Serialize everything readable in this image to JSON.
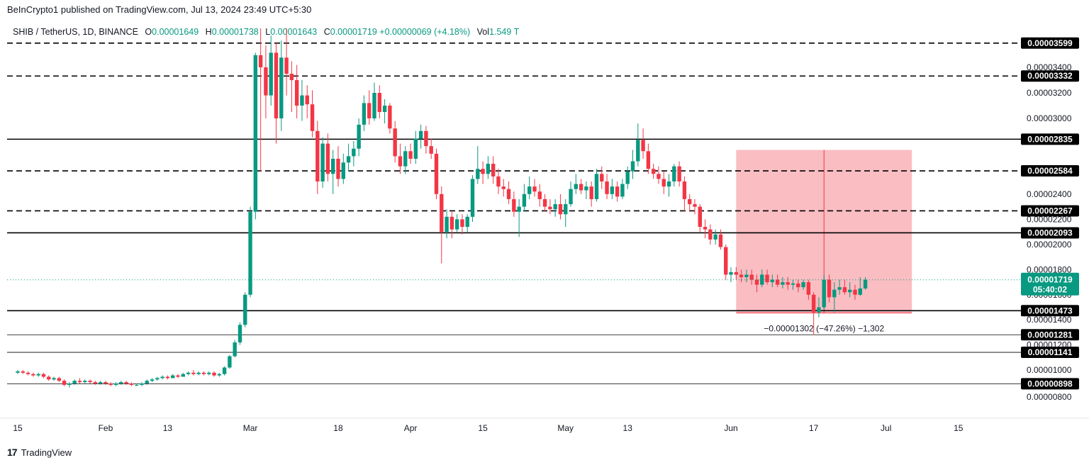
{
  "header": {
    "published": "BeInCrypto1 published on TradingView.com, Jul 13, 2024 23:49 UTC+5:30"
  },
  "legend": {
    "symbol": "SHIB / TetherUS, 1D, BINANCE",
    "open_label": "O",
    "open": "0.00001649",
    "high_label": "H",
    "high": "0.00001738",
    "low_label": "L",
    "low": "0.00001643",
    "close_label": "C",
    "close": "0.00001719",
    "change": "+0.00000069 (+4.18%)",
    "vol_label": "Vol",
    "vol": "1.549 T"
  },
  "footer": {
    "brand": "TradingView"
  },
  "colors": {
    "up": "#089981",
    "down": "#f23645",
    "range_fill": "#f7a1a8",
    "line": "#000000"
  },
  "chart_data": {
    "type": "candlestick",
    "symbol": "SHIB / TetherUS",
    "timeframe": "1D",
    "exchange": "BINANCE",
    "ylim": [
      7.5e-06,
      3.7e-05
    ],
    "y_ticks": [
      "0.00000800",
      "0.00001000",
      "0.00001200",
      "0.00001400",
      "0.00001600",
      "0.00001800",
      "0.00002000",
      "0.00002200",
      "0.00002400",
      "0.00003000",
      "0.00003200",
      "0.00003400"
    ],
    "x_ticks": [
      "15",
      "Feb",
      "13",
      "Mar",
      "18",
      "Apr",
      "15",
      "May",
      "13",
      "Jun",
      "17",
      "Jul",
      "15"
    ],
    "x_tick_days": [
      0,
      17,
      29,
      45,
      62,
      76,
      90,
      106,
      118,
      138,
      154,
      168,
      182
    ],
    "start_date": "2024-01-15",
    "levels": [
      {
        "value": 3.599e-05,
        "label": "0.00003599",
        "style": "dashed"
      },
      {
        "value": 3.332e-05,
        "label": "0.00003332",
        "style": "dashed"
      },
      {
        "value": 2.835e-05,
        "label": "0.00002835",
        "style": "solid"
      },
      {
        "value": 2.584e-05,
        "label": "0.00002584",
        "style": "dashed"
      },
      {
        "value": 2.267e-05,
        "label": "0.00002267",
        "style": "dashed"
      },
      {
        "value": 2.093e-05,
        "label": "0.00002093",
        "style": "solid"
      },
      {
        "value": 1.473e-05,
        "label": "0.00001473",
        "style": "solid"
      },
      {
        "value": 1.281e-05,
        "label": "0.00001281",
        "style": "thin"
      },
      {
        "value": 1.141e-05,
        "label": "0.00001141",
        "style": "thin"
      },
      {
        "value": 8.98e-06,
        "label": "0.00000898",
        "style": "thin"
      }
    ],
    "last_price": {
      "value": 1.719e-05,
      "label": "0.00001719",
      "countdown": "05:40:02"
    },
    "measure": {
      "from_day": 139,
      "to_day": 173,
      "top": 2.75e-05,
      "bottom": 1.455e-05,
      "label": "−0.00001302 (−47.26%) −1,302"
    },
    "candles": [
      [
        9.8e-06,
        1e-05,
        9.7e-06,
        9.9e-06
      ],
      [
        9.9e-06,
        1e-05,
        9.7e-06,
        9.8e-06
      ],
      [
        9.8e-06,
        9.9e-06,
        9.6e-06,
        9.7e-06
      ],
      [
        9.7e-06,
        9.8e-06,
        9.5e-06,
        9.6e-06
      ],
      [
        9.6e-06,
        9.8e-06,
        9.5e-06,
        9.7e-06
      ],
      [
        9.7e-06,
        9.8e-06,
        9.4e-06,
        9.5e-06
      ],
      [
        9.5e-06,
        9.6e-06,
        9.2e-06,
        9.3e-06
      ],
      [
        9.3e-06,
        9.5e-06,
        9.2e-06,
        9.4e-06
      ],
      [
        9.4e-06,
        9.5e-06,
        9.1e-06,
        9.2e-06
      ],
      [
        9.2e-06,
        9.3e-06,
        8.8e-06,
        8.9e-06
      ],
      [
        8.9e-06,
        9.1e-06,
        8.7e-06,
        9e-06
      ],
      [
        9e-06,
        9.3e-06,
        8.9e-06,
        9.2e-06
      ],
      [
        9.2e-06,
        9.4e-06,
        9e-06,
        9.1e-06
      ],
      [
        9.1e-06,
        9.3e-06,
        9e-06,
        9.2e-06
      ],
      [
        9.2e-06,
        9.3e-06,
        9e-06,
        9.1e-06
      ],
      [
        9.1e-06,
        9.2e-06,
        8.9e-06,
        9e-06
      ],
      [
        9e-06,
        9.2e-06,
        8.9e-06,
        9.1e-06
      ],
      [
        9.1e-06,
        9.2e-06,
        8.9e-06,
        9e-06
      ],
      [
        9e-06,
        9.1e-06,
        8.8e-06,
        8.9e-06
      ],
      [
        8.9e-06,
        9.1e-06,
        8.8e-06,
        9e-06
      ],
      [
        9e-06,
        9.2e-06,
        8.9e-06,
        9.1e-06
      ],
      [
        9.1e-06,
        9.2e-06,
        8.9e-06,
        9e-06
      ],
      [
        9e-06,
        9.1e-06,
        8.8e-06,
        8.9e-06
      ],
      [
        8.9e-06,
        9e-06,
        8.8e-06,
        8.9e-06
      ],
      [
        8.9e-06,
        9.1e-06,
        8.8e-06,
        9e-06
      ],
      [
        9e-06,
        9.3e-06,
        8.9e-06,
        9.2e-06
      ],
      [
        9.2e-06,
        9.4e-06,
        9.1e-06,
        9.3e-06
      ],
      [
        9.3e-06,
        9.5e-06,
        9.2e-06,
        9.4e-06
      ],
      [
        9.4e-06,
        9.6e-06,
        9.3e-06,
        9.5e-06
      ],
      [
        9.5e-06,
        9.6e-06,
        9.3e-06,
        9.4e-06
      ],
      [
        9.4e-06,
        9.7e-06,
        9.4e-06,
        9.6e-06
      ],
      [
        9.6e-06,
        9.7e-06,
        9.4e-06,
        9.5e-06
      ],
      [
        9.5e-06,
        9.8e-06,
        9.5e-06,
        9.7e-06
      ],
      [
        9.7e-06,
        9.9e-06,
        9.6e-06,
        9.8e-06
      ],
      [
        9.8e-06,
        1e-05,
        9.6e-06,
        9.7e-06
      ],
      [
        9.7e-06,
        9.9e-06,
        9.6e-06,
        9.8e-06
      ],
      [
        9.8e-06,
        9.9e-06,
        9.6e-06,
        9.7e-06
      ],
      [
        9.7e-06,
        9.9e-06,
        9.6e-06,
        9.8e-06
      ],
      [
        9.8e-06,
        9.9e-06,
        9.5e-06,
        9.6e-06
      ],
      [
        9.6e-06,
        9.8e-06,
        9.5e-06,
        9.7e-06
      ],
      [
        9.7e-06,
        1.03e-05,
        9.6e-06,
        1.02e-05
      ],
      [
        1.02e-05,
        1.12e-05,
        1.01e-05,
        1.11e-05
      ],
      [
        1.11e-05,
        1.24e-05,
        1.1e-05,
        1.22e-05
      ],
      [
        1.22e-05,
        1.38e-05,
        1.2e-05,
        1.36e-05
      ],
      [
        1.36e-05,
        1.62e-05,
        1.34e-05,
        1.6e-05
      ],
      [
        1.6e-05,
        2.3e-05,
        1.58e-05,
        2.26e-05
      ],
      [
        2.26e-05,
        3.52e-05,
        2.2e-05,
        3.5e-05
      ],
      [
        3.5e-05,
        3.72e-05,
        2.58e-05,
        3.4e-05
      ],
      [
        3.4e-05,
        3.58e-05,
        3e-05,
        3.18e-05
      ],
      [
        3.18e-05,
        3.66e-05,
        3.1e-05,
        3.52e-05
      ],
      [
        3.52e-05,
        3.6e-05,
        2.8e-05,
        3e-05
      ],
      [
        3e-05,
        3.62e-05,
        2.9e-05,
        3.48e-05
      ],
      [
        3.48e-05,
        3.72e-05,
        3.18e-05,
        3.35e-05
      ],
      [
        3.35e-05,
        3.45e-05,
        3.05e-05,
        3.3e-05
      ],
      [
        3.3e-05,
        3.42e-05,
        3e-05,
        3.1e-05
      ],
      [
        3.1e-05,
        3.3e-05,
        2.98e-05,
        3.18e-05
      ],
      [
        3.18e-05,
        3.26e-05,
        3e-05,
        3.11e-05
      ],
      [
        3.11e-05,
        3.22e-05,
        2.85e-05,
        2.9e-05
      ],
      [
        2.9e-05,
        2.98e-05,
        2.4e-05,
        2.5e-05
      ],
      [
        2.5e-05,
        2.85e-05,
        2.45e-05,
        2.8e-05
      ],
      [
        2.8e-05,
        2.88e-05,
        2.5e-05,
        2.56e-05
      ],
      [
        2.56e-05,
        2.75e-05,
        2.4e-05,
        2.68e-05
      ],
      [
        2.68e-05,
        2.78e-05,
        2.46e-05,
        2.52e-05
      ],
      [
        2.52e-05,
        2.72e-05,
        2.48e-05,
        2.65e-05
      ],
      [
        2.65e-05,
        2.8e-05,
        2.58e-05,
        2.7e-05
      ],
      [
        2.7e-05,
        2.82e-05,
        2.62e-05,
        2.76e-05
      ],
      [
        2.76e-05,
        3e-05,
        2.7e-05,
        2.95e-05
      ],
      [
        2.95e-05,
        3.18e-05,
        2.9e-05,
        3.12e-05
      ],
      [
        3.12e-05,
        3.22e-05,
        2.95e-05,
        3e-05
      ],
      [
        3e-05,
        3.28e-05,
        2.98e-05,
        3.2e-05
      ],
      [
        3.2e-05,
        3.26e-05,
        3e-05,
        3.05e-05
      ],
      [
        3.05e-05,
        3.15e-05,
        2.96e-05,
        3.1e-05
      ],
      [
        3.1e-05,
        3.12e-05,
        2.88e-05,
        2.92e-05
      ],
      [
        2.92e-05,
        2.98e-05,
        2.65e-05,
        2.7e-05
      ],
      [
        2.7e-05,
        2.8e-05,
        2.56e-05,
        2.62e-05
      ],
      [
        2.62e-05,
        2.78e-05,
        2.56e-05,
        2.74e-05
      ],
      [
        2.74e-05,
        2.8e-05,
        2.64e-05,
        2.68e-05
      ],
      [
        2.68e-05,
        2.9e-05,
        2.64e-05,
        2.84e-05
      ],
      [
        2.84e-05,
        2.95e-05,
        2.76e-05,
        2.9e-05
      ],
      [
        2.9e-05,
        2.94e-05,
        2.72e-05,
        2.78e-05
      ],
      [
        2.78e-05,
        2.84e-05,
        2.68e-05,
        2.72e-05
      ],
      [
        2.72e-05,
        2.76e-05,
        2.36e-05,
        2.4e-05
      ],
      [
        2.4e-05,
        2.46e-05,
        1.85e-05,
        2.1e-05
      ],
      [
        2.1e-05,
        2.28e-05,
        2.05e-05,
        2.22e-05
      ],
      [
        2.22e-05,
        2.26e-05,
        2.05e-05,
        2.12e-05
      ],
      [
        2.12e-05,
        2.24e-05,
        2.1e-05,
        2.2e-05
      ],
      [
        2.2e-05,
        2.24e-05,
        2.08e-05,
        2.14e-05
      ],
      [
        2.14e-05,
        2.24e-05,
        2.1e-05,
        2.22e-05
      ],
      [
        2.22e-05,
        2.55e-05,
        2.18e-05,
        2.52e-05
      ],
      [
        2.52e-05,
        2.78e-05,
        2.48e-05,
        2.6e-05
      ],
      [
        2.6e-05,
        2.66e-05,
        2.48e-05,
        2.56e-05
      ],
      [
        2.56e-05,
        2.7e-05,
        2.52e-05,
        2.64e-05
      ],
      [
        2.64e-05,
        2.7e-05,
        2.48e-05,
        2.54e-05
      ],
      [
        2.54e-05,
        2.6e-05,
        2.4e-05,
        2.46e-05
      ],
      [
        2.46e-05,
        2.52e-05,
        2.38e-05,
        2.44e-05
      ],
      [
        2.44e-05,
        2.5e-05,
        2.32e-05,
        2.36e-05
      ],
      [
        2.36e-05,
        2.42e-05,
        2.22e-05,
        2.26e-05
      ],
      [
        2.26e-05,
        2.36e-05,
        2.06e-05,
        2.3e-05
      ],
      [
        2.3e-05,
        2.48e-05,
        2.26e-05,
        2.4e-05
      ],
      [
        2.4e-05,
        2.54e-05,
        2.36e-05,
        2.46e-05
      ],
      [
        2.46e-05,
        2.52e-05,
        2.38e-05,
        2.42e-05
      ],
      [
        2.42e-05,
        2.48e-05,
        2.3e-05,
        2.36e-05
      ],
      [
        2.36e-05,
        2.4e-05,
        2.26e-05,
        2.3e-05
      ],
      [
        2.3e-05,
        2.36e-05,
        2.24e-05,
        2.28e-05
      ],
      [
        2.28e-05,
        2.36e-05,
        2.22e-05,
        2.32e-05
      ],
      [
        2.32e-05,
        2.4e-05,
        2.2e-05,
        2.24e-05
      ],
      [
        2.24e-05,
        2.36e-05,
        2.14e-05,
        2.32e-05
      ],
      [
        2.32e-05,
        2.5e-05,
        2.3e-05,
        2.44e-05
      ],
      [
        2.44e-05,
        2.56e-05,
        2.4e-05,
        2.48e-05
      ],
      [
        2.48e-05,
        2.52e-05,
        2.4e-05,
        2.43e-05
      ],
      [
        2.43e-05,
        2.5e-05,
        2.36e-05,
        2.46e-05
      ],
      [
        2.46e-05,
        2.5e-05,
        2.3e-05,
        2.36e-05
      ],
      [
        2.36e-05,
        2.6e-05,
        2.34e-05,
        2.56e-05
      ],
      [
        2.56e-05,
        2.62e-05,
        2.44e-05,
        2.5e-05
      ],
      [
        2.5e-05,
        2.56e-05,
        2.36e-05,
        2.4e-05
      ],
      [
        2.4e-05,
        2.52e-05,
        2.36e-05,
        2.46e-05
      ],
      [
        2.46e-05,
        2.5e-05,
        2.34e-05,
        2.38e-05
      ],
      [
        2.38e-05,
        2.52e-05,
        2.36e-05,
        2.48e-05
      ],
      [
        2.48e-05,
        2.62e-05,
        2.44e-05,
        2.58e-05
      ],
      [
        2.58e-05,
        2.75e-05,
        2.52e-05,
        2.66e-05
      ],
      [
        2.66e-05,
        2.96e-05,
        2.62e-05,
        2.83e-05
      ],
      [
        2.83e-05,
        2.92e-05,
        2.68e-05,
        2.74e-05
      ],
      [
        2.74e-05,
        2.8e-05,
        2.56e-05,
        2.6e-05
      ],
      [
        2.6e-05,
        2.64e-05,
        2.52e-05,
        2.56e-05
      ],
      [
        2.56e-05,
        2.62e-05,
        2.48e-05,
        2.52e-05
      ],
      [
        2.52e-05,
        2.58e-05,
        2.4e-05,
        2.46e-05
      ],
      [
        2.46e-05,
        2.56e-05,
        2.38e-05,
        2.5e-05
      ],
      [
        2.5e-05,
        2.64e-05,
        2.46e-05,
        2.62e-05
      ],
      [
        2.62e-05,
        2.66e-05,
        2.46e-05,
        2.5e-05
      ],
      [
        2.5e-05,
        2.54e-05,
        2.26e-05,
        2.36e-05
      ],
      [
        2.36e-05,
        2.4e-05,
        2.26e-05,
        2.32e-05
      ],
      [
        2.32e-05,
        2.36e-05,
        2.24e-05,
        2.3e-05
      ],
      [
        2.3e-05,
        2.32e-05,
        2.1e-05,
        2.14e-05
      ],
      [
        2.14e-05,
        2.2e-05,
        2.05e-05,
        2.12e-05
      ],
      [
        2.12e-05,
        2.16e-05,
        2e-05,
        2.04e-05
      ],
      [
        2.04e-05,
        2.12e-05,
        2e-05,
        2.08e-05
      ],
      [
        2.08e-05,
        2.12e-05,
        1.96e-05,
        1.98e-05
      ],
      [
        1.98e-05,
        2e-05,
        1.72e-05,
        1.76e-05
      ],
      [
        1.76e-05,
        1.82e-05,
        1.7e-05,
        1.78e-05
      ],
      [
        1.78e-05,
        1.82e-05,
        1.72e-05,
        1.76e-05
      ],
      [
        1.76e-05,
        1.8e-05,
        1.7e-05,
        1.74e-05
      ],
      [
        1.74e-05,
        1.8e-05,
        1.7e-05,
        1.76e-05
      ],
      [
        1.76e-05,
        1.8e-05,
        1.68e-05,
        1.72e-05
      ],
      [
        1.72e-05,
        1.76e-05,
        1.62e-05,
        1.68e-05
      ],
      [
        1.68e-05,
        1.8e-05,
        1.66e-05,
        1.76e-05
      ],
      [
        1.76e-05,
        1.8e-05,
        1.68e-05,
        1.7e-05
      ],
      [
        1.7e-05,
        1.76e-05,
        1.66e-05,
        1.72e-05
      ],
      [
        1.72e-05,
        1.76e-05,
        1.66e-05,
        1.68e-05
      ],
      [
        1.68e-05,
        1.74e-05,
        1.65e-05,
        1.7e-05
      ],
      [
        1.7e-05,
        1.74e-05,
        1.64e-05,
        1.68e-05
      ],
      [
        1.68e-05,
        1.72e-05,
        1.64e-05,
        1.69e-05
      ],
      [
        1.69e-05,
        1.72e-05,
        1.62e-05,
        1.66e-05
      ],
      [
        1.66e-05,
        1.72e-05,
        1.64e-05,
        1.7e-05
      ],
      [
        1.7e-05,
        1.72e-05,
        1.56e-05,
        1.6e-05
      ],
      [
        1.6e-05,
        1.62e-05,
        1.28e-05,
        1.46e-05
      ],
      [
        1.46e-05,
        1.58e-05,
        1.42e-05,
        1.5e-05
      ],
      [
        1.5e-05,
        1.76e-05,
        1.48e-05,
        1.72e-05
      ],
      [
        1.72e-05,
        1.76e-05,
        1.54e-05,
        1.58e-05
      ],
      [
        1.58e-05,
        1.7e-05,
        1.46e-05,
        1.64e-05
      ],
      [
        1.64e-05,
        1.72e-05,
        1.6e-05,
        1.66e-05
      ],
      [
        1.66e-05,
        1.72e-05,
        1.6e-05,
        1.62e-05
      ],
      [
        1.62e-05,
        1.7e-05,
        1.58e-05,
        1.64e-05
      ],
      [
        1.64e-05,
        1.68e-05,
        1.56e-05,
        1.6e-05
      ],
      [
        1.6e-05,
        1.74e-05,
        1.59e-05,
        1.65e-05
      ],
      [
        1.65e-05,
        1.74e-05,
        1.64e-05,
        1.72e-05
      ]
    ]
  }
}
